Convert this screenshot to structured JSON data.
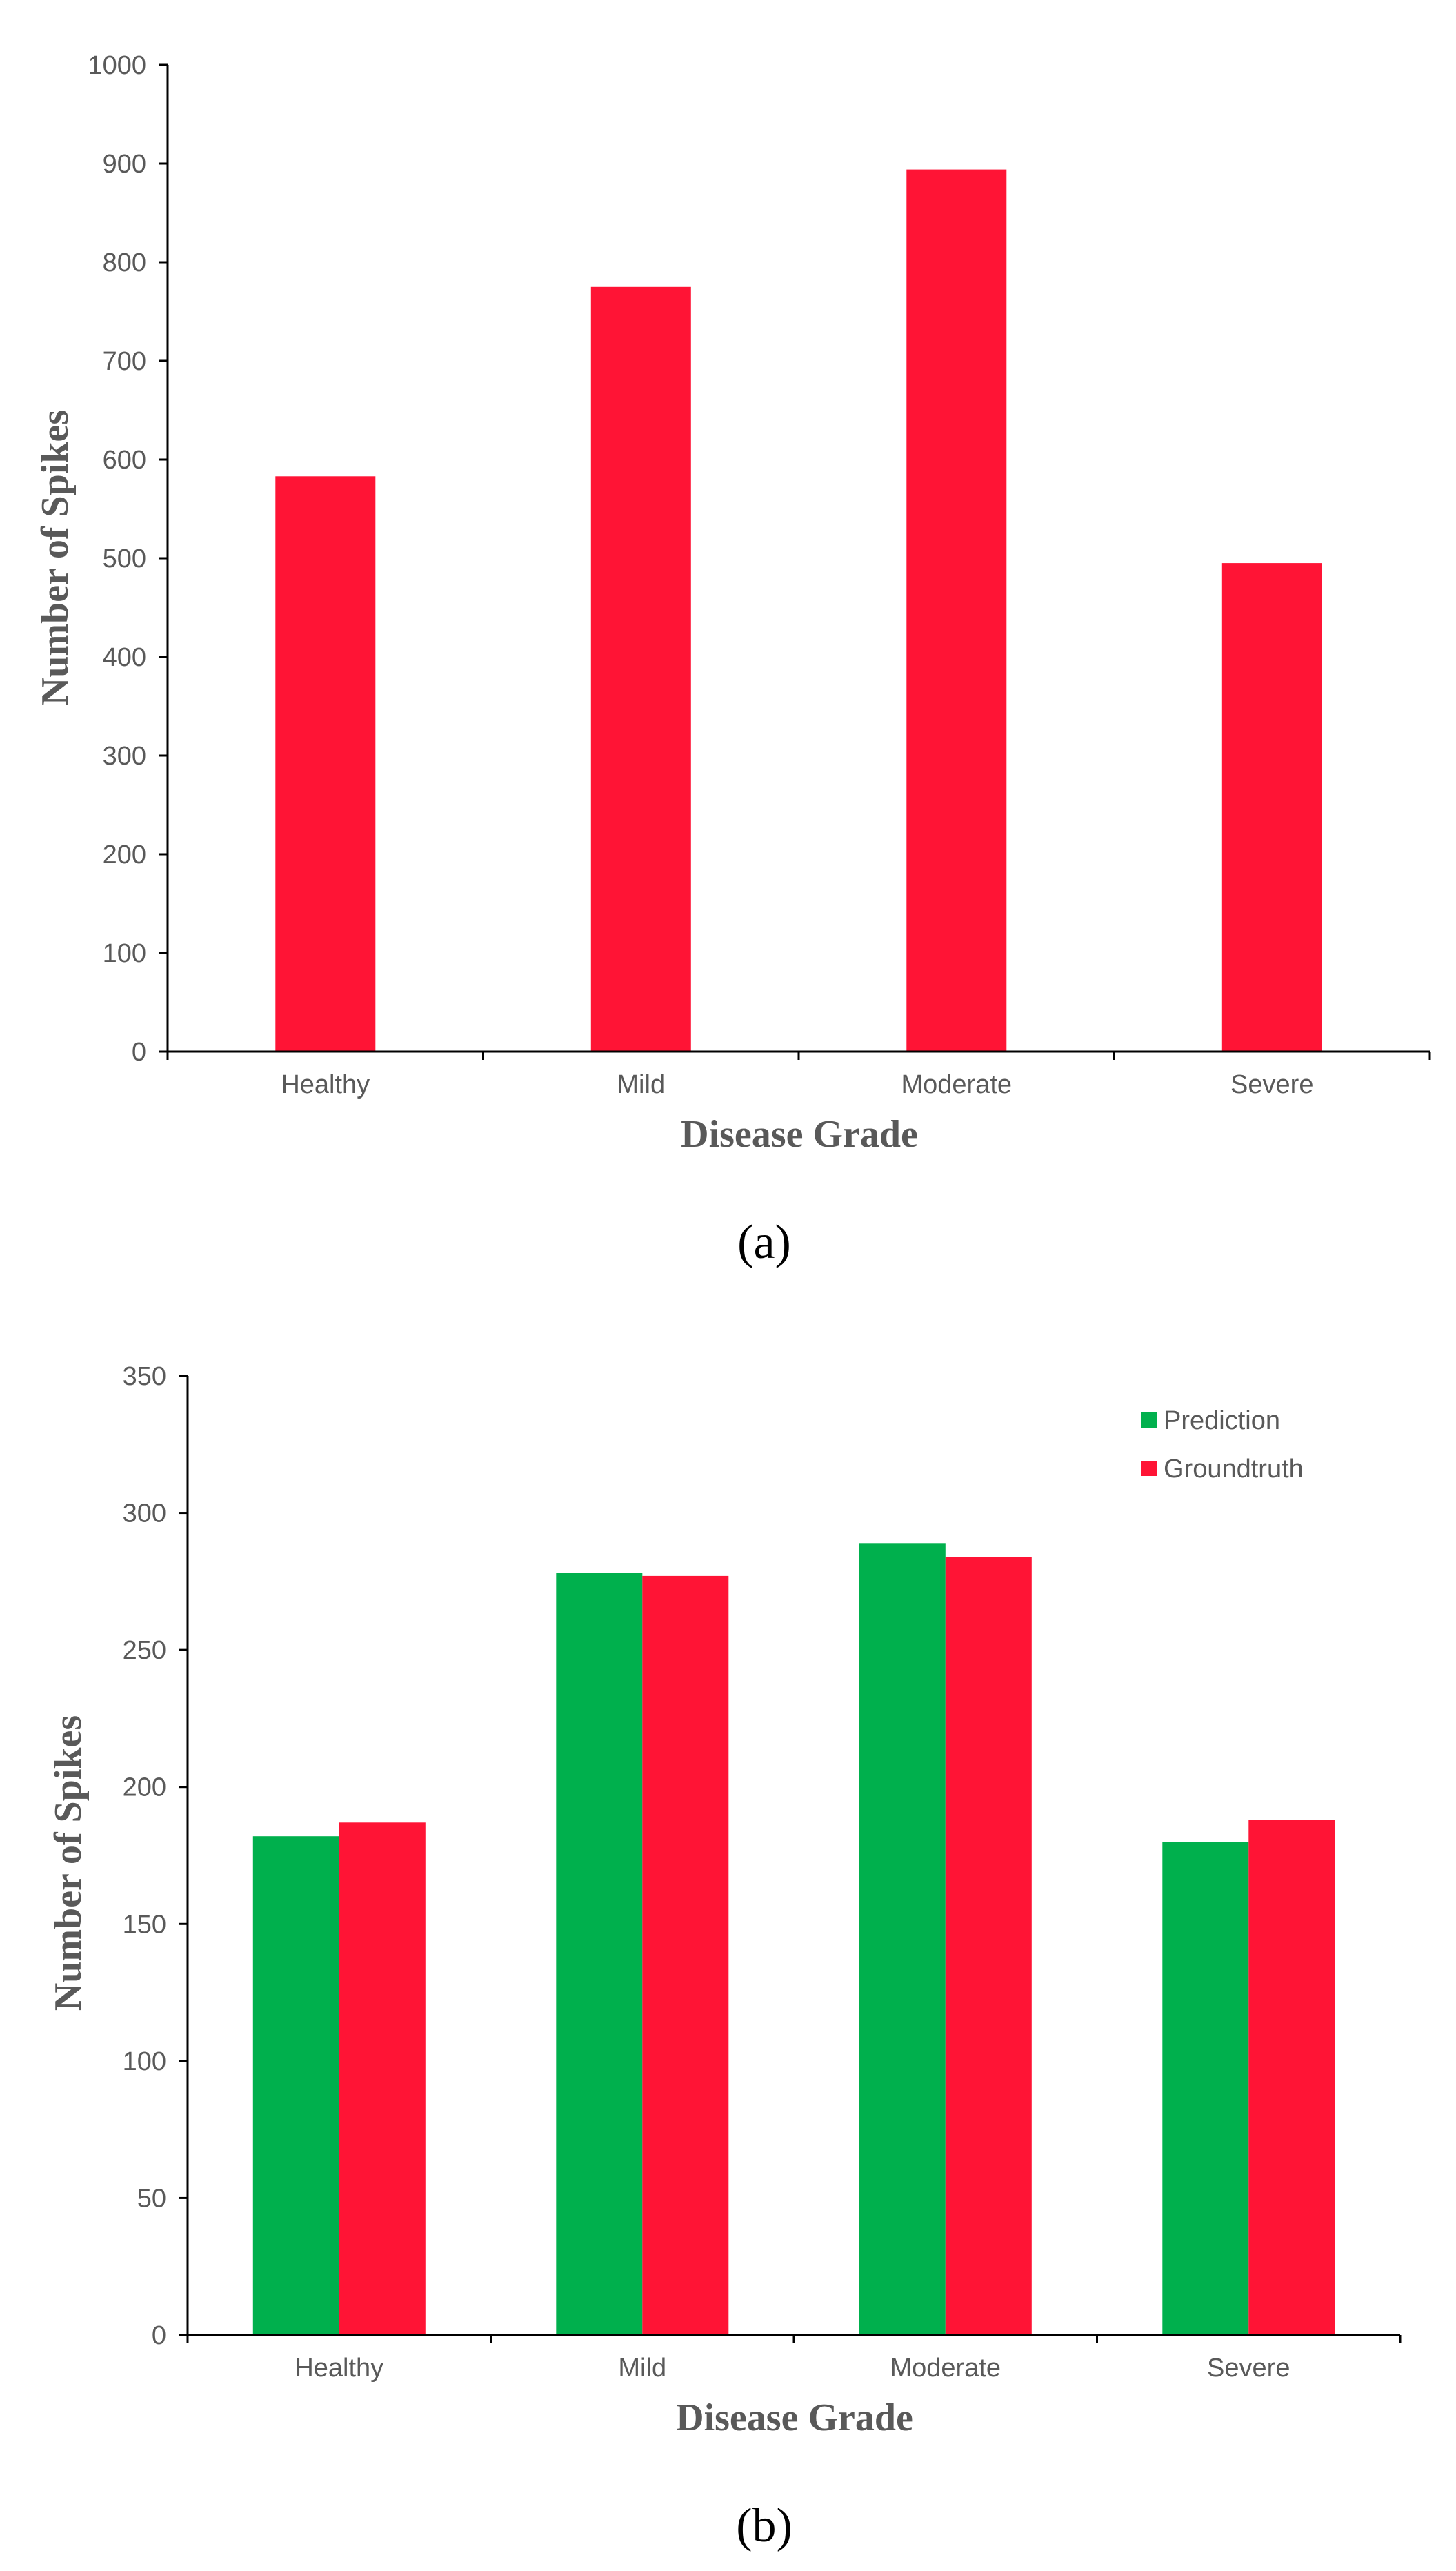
{
  "figure": {
    "colors": {
      "red": "#ff1435",
      "green": "#00b04d",
      "axis": "#000000",
      "text": "#595959"
    }
  },
  "chart_data": [
    {
      "id": "a",
      "type": "bar",
      "caption": "(a)",
      "categories": [
        "Healthy",
        "Mild",
        "Moderate",
        "Severe"
      ],
      "series": [
        {
          "name": "",
          "color": "#ff1435",
          "values": [
            583,
            775,
            894,
            495
          ]
        }
      ],
      "xlabel": "Disease Grade",
      "ylabel": "Number of Spikes",
      "ylim": [
        0,
        1000
      ],
      "yticks": [
        0,
        100,
        200,
        300,
        400,
        500,
        600,
        700,
        800,
        900,
        1000
      ],
      "legend": null,
      "grid": false
    },
    {
      "id": "b",
      "type": "bar",
      "caption": "(b)",
      "categories": [
        "Healthy",
        "Mild",
        "Moderate",
        "Severe"
      ],
      "series": [
        {
          "name": "Prediction",
          "color": "#00b04d",
          "values": [
            182,
            278,
            289,
            180
          ]
        },
        {
          "name": "Groundtruth",
          "color": "#ff1435",
          "values": [
            187,
            277,
            284,
            188
          ]
        }
      ],
      "xlabel": "Disease Grade",
      "ylabel": "Number of Spikes",
      "ylim": [
        0,
        350
      ],
      "yticks": [
        0,
        50,
        100,
        150,
        200,
        250,
        300,
        350
      ],
      "legend": "top-right",
      "grid": false
    }
  ]
}
